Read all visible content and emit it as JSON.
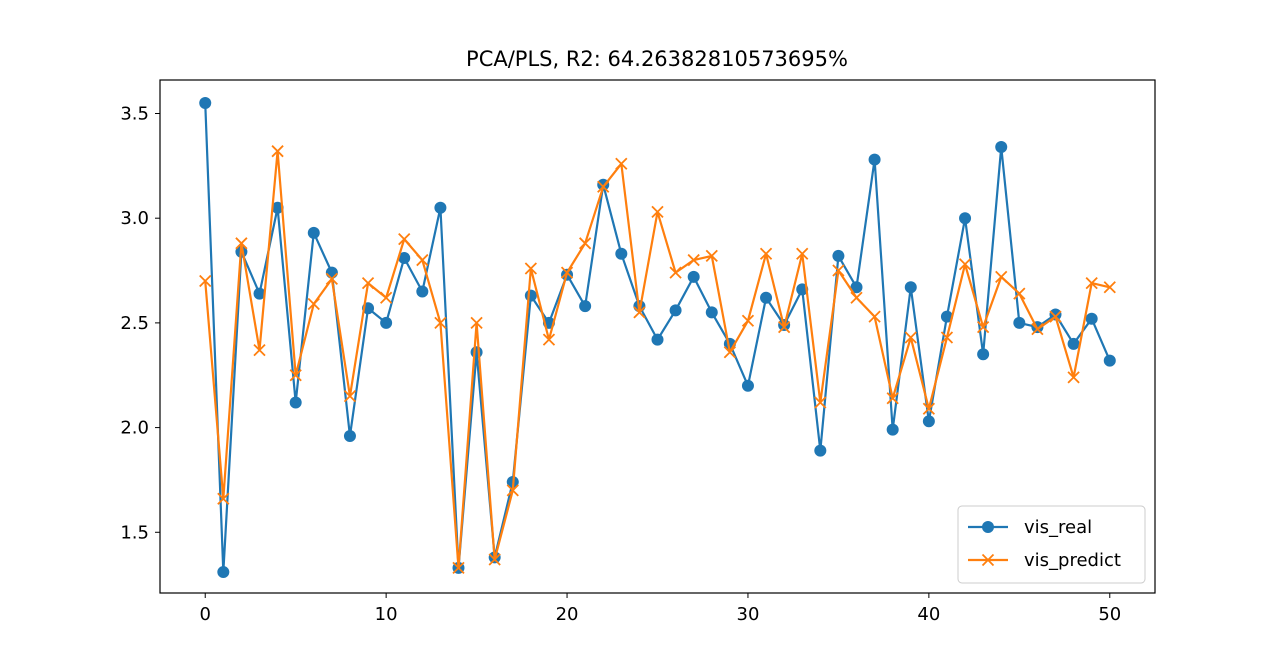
{
  "chart_data": {
    "type": "line",
    "title": "PCA/PLS, R2: 64.26382810573695%",
    "xlabel": "",
    "ylabel": "",
    "xlim": [
      -2.5,
      52.5
    ],
    "ylim": [
      1.21,
      3.66
    ],
    "x_ticks": [
      0,
      10,
      20,
      30,
      40,
      50
    ],
    "y_ticks": [
      1.5,
      2.0,
      2.5,
      3.0,
      3.5
    ],
    "x_tick_labels": [
      "0",
      "10",
      "20",
      "30",
      "40",
      "50"
    ],
    "y_tick_labels": [
      "1.5",
      "2.0",
      "2.5",
      "3.0",
      "3.5"
    ],
    "legend_position": "lower-right",
    "grid": false,
    "x": [
      0,
      1,
      2,
      3,
      4,
      5,
      6,
      7,
      8,
      9,
      10,
      11,
      12,
      13,
      14,
      15,
      16,
      17,
      18,
      19,
      20,
      21,
      22,
      23,
      24,
      25,
      26,
      27,
      28,
      29,
      30,
      31,
      32,
      33,
      34,
      35,
      36,
      37,
      38,
      39,
      40,
      41,
      42,
      43,
      44,
      45,
      46,
      47,
      48,
      49,
      50
    ],
    "series": [
      {
        "name": "vis_real",
        "color": "#1f77b4",
        "marker": "circle",
        "values": [
          3.55,
          1.31,
          2.84,
          2.64,
          3.05,
          2.12,
          2.93,
          2.74,
          1.96,
          2.57,
          2.5,
          2.81,
          2.65,
          3.05,
          1.33,
          2.36,
          1.38,
          1.74,
          2.63,
          2.5,
          2.73,
          2.58,
          3.16,
          2.83,
          2.58,
          2.42,
          2.56,
          2.72,
          2.55,
          2.4,
          2.2,
          2.62,
          2.49,
          2.66,
          1.89,
          2.82,
          2.67,
          3.28,
          1.99,
          2.67,
          2.03,
          2.53,
          3.0,
          2.35,
          3.34,
          2.5,
          2.48,
          2.54,
          2.4,
          2.52,
          2.32
        ]
      },
      {
        "name": "vis_predict",
        "color": "#ff7f0e",
        "marker": "x",
        "values": [
          2.7,
          1.66,
          2.88,
          2.37,
          3.32,
          2.25,
          2.59,
          2.71,
          2.15,
          2.69,
          2.62,
          2.9,
          2.8,
          2.5,
          1.33,
          2.5,
          1.37,
          1.7,
          2.76,
          2.42,
          2.74,
          2.88,
          3.15,
          3.26,
          2.55,
          3.03,
          2.74,
          2.8,
          2.82,
          2.36,
          2.51,
          2.83,
          2.48,
          2.83,
          2.12,
          2.75,
          2.62,
          2.53,
          2.14,
          2.43,
          2.09,
          2.43,
          2.78,
          2.48,
          2.72,
          2.64,
          2.47,
          2.53,
          2.24,
          2.69,
          2.67
        ]
      }
    ]
  }
}
